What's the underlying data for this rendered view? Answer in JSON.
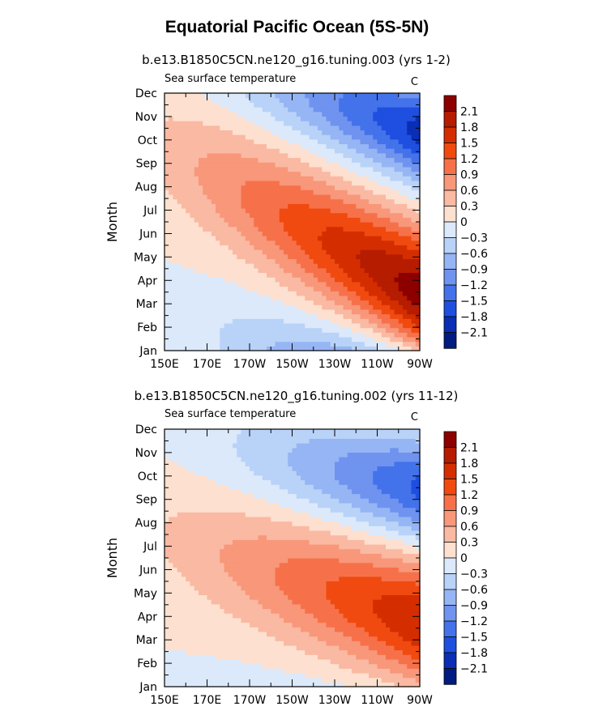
{
  "figure": {
    "title": "Equatorial Pacific Ocean (5S-5N)"
  },
  "chart_data": [
    {
      "type": "heatmap",
      "title": "b.e13.B1850C5CN.ne120_g16.tuning.003 (yrs 1-2)",
      "left_label": "Sea surface temperature",
      "right_label": "C",
      "xlabel": "",
      "ylabel": "Month",
      "x_ticks": [
        "150E",
        "170E",
        "170W",
        "150W",
        "130W",
        "110W",
        "90W"
      ],
      "x_values_deg_east": [
        150,
        170,
        190,
        210,
        230,
        250,
        270
      ],
      "y_ticks": [
        "Jan",
        "Feb",
        "Mar",
        "Apr",
        "May",
        "Jun",
        "Jul",
        "Aug",
        "Sep",
        "Oct",
        "Nov",
        "Dec"
      ],
      "colorbar": {
        "levels": [
          2.1,
          1.8,
          1.5,
          1.2,
          0.9,
          0.6,
          0.3,
          0,
          -0.3,
          -0.6,
          -0.9,
          -1.2,
          -1.5,
          -1.8,
          -2.1
        ],
        "labels": [
          "2.1",
          "1.8",
          "1.5",
          "1.2",
          "0.9",
          "0.6",
          "0.3",
          "0",
          "−0.3",
          "−0.6",
          "−0.9",
          "−1.2",
          "−1.5",
          "−1.8",
          "−2.1"
        ],
        "colors": [
          "#8c0000",
          "#b51c00",
          "#d42e00",
          "#f04a10",
          "#f6714a",
          "#f8977a",
          "#fab9a2",
          "#fde0cf",
          "#dbe9fb",
          "#b9d2f8",
          "#96b5f4",
          "#6f93ef",
          "#4372ea",
          "#1e4fe0",
          "#0a2fb5",
          "#001c80"
        ]
      },
      "field": {
        "warm_peak_month_at_90W": 3.5,
        "warm_peak_value": 2.3,
        "cold_peak_month_at_90W": 10.5,
        "cold_peak_value": -2.0,
        "westward_phase_shift_months_per_10deg": 0.5
      }
    },
    {
      "type": "heatmap",
      "title": "b.e13.B1850C5CN.ne120_g16.tuning.002 (yrs 11-12)",
      "left_label": "Sea surface temperature",
      "right_label": "C",
      "xlabel": "",
      "ylabel": "Month",
      "x_ticks": [
        "150E",
        "170E",
        "170W",
        "150W",
        "130W",
        "110W",
        "90W"
      ],
      "x_values_deg_east": [
        150,
        170,
        190,
        210,
        230,
        250,
        270
      ],
      "y_ticks": [
        "Jan",
        "Feb",
        "Mar",
        "Apr",
        "May",
        "Jun",
        "Jul",
        "Aug",
        "Sep",
        "Oct",
        "Nov",
        "Dec"
      ],
      "colorbar": {
        "levels": [
          2.1,
          1.8,
          1.5,
          1.2,
          0.9,
          0.6,
          0.3,
          0,
          -0.3,
          -0.6,
          -0.9,
          -1.2,
          -1.5,
          -1.8,
          -2.1
        ],
        "labels": [
          "2.1",
          "1.8",
          "1.5",
          "1.2",
          "0.9",
          "0.6",
          "0.3",
          "0",
          "−0.3",
          "−0.6",
          "−0.9",
          "−1.2",
          "−1.5",
          "−1.8",
          "−2.1"
        ],
        "colors": [
          "#8c0000",
          "#b51c00",
          "#d42e00",
          "#f04a10",
          "#f6714a",
          "#f8977a",
          "#fab9a2",
          "#fde0cf",
          "#dbe9fb",
          "#b9d2f8",
          "#96b5f4",
          "#6f93ef",
          "#4372ea",
          "#1e4fe0",
          "#0a2fb5",
          "#001c80"
        ]
      },
      "field": {
        "warm_peak_month_at_90W": 3.8,
        "warm_peak_value": 1.8,
        "cold_peak_month_at_90W": 9.5,
        "cold_peak_value": -1.6,
        "westward_phase_shift_months_per_10deg": 0.3
      }
    }
  ]
}
